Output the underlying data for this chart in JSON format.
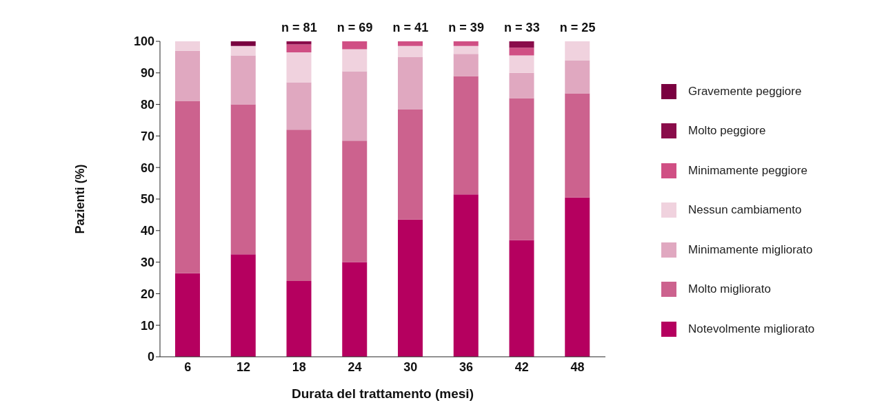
{
  "chart_data": {
    "type": "bar",
    "stacked": true,
    "xlabel": "Durata del trattamento (mesi)",
    "ylabel": "Pazienti (%)",
    "categories": [
      "6",
      "12",
      "18",
      "24",
      "30",
      "36",
      "42",
      "48"
    ],
    "series": [
      {
        "name": "Notevolmente migliorato",
        "color": "#b5005f",
        "values": [
          26.5,
          32.5,
          24,
          30,
          43.5,
          51.5,
          37,
          50.5
        ]
      },
      {
        "name": "Molto migliorato",
        "color": "#cc628e",
        "values": [
          54.5,
          47.5,
          48,
          38.5,
          35,
          37.5,
          45,
          33
        ]
      },
      {
        "name": "Minimamente migliorato",
        "color": "#e0a8c0",
        "values": [
          16,
          15.5,
          15,
          22,
          16.5,
          7,
          8,
          10.5
        ]
      },
      {
        "name": "Nessun cambiamento",
        "color": "#f0d2de",
        "values": [
          3,
          3,
          9.5,
          7,
          3.5,
          2.5,
          5.5,
          6
        ]
      },
      {
        "name": "Minimamente peggiore",
        "color": "#d04f84",
        "values": [
          0,
          0,
          2.5,
          2.5,
          1.5,
          1.5,
          2.5,
          0
        ]
      },
      {
        "name": "Molto peggiore",
        "color": "#8a0c4a",
        "values": [
          0,
          0,
          1,
          0,
          0,
          0,
          2,
          0
        ]
      },
      {
        "name": "Gravemente peggiore",
        "color": "#7a0040",
        "values": [
          0,
          1.5,
          0,
          0,
          0,
          0,
          0,
          0
        ]
      }
    ],
    "ylim": [
      0,
      100
    ],
    "yticks": [
      0,
      10,
      20,
      30,
      40,
      50,
      60,
      70,
      80,
      90,
      100
    ],
    "grid": false,
    "legend": "right",
    "annotations": [
      {
        "text": "n = 81",
        "x": "18",
        "y": 100
      },
      {
        "text": "n = 69",
        "x": "24",
        "y": 100
      },
      {
        "text": "n = 41",
        "x": "30",
        "y": 100
      },
      {
        "text": "n = 39",
        "x": "36",
        "y": 100
      },
      {
        "text": "n = 33",
        "x": "42",
        "y": 100
      },
      {
        "text": "n = 25",
        "x": "48",
        "y": 100
      }
    ]
  }
}
